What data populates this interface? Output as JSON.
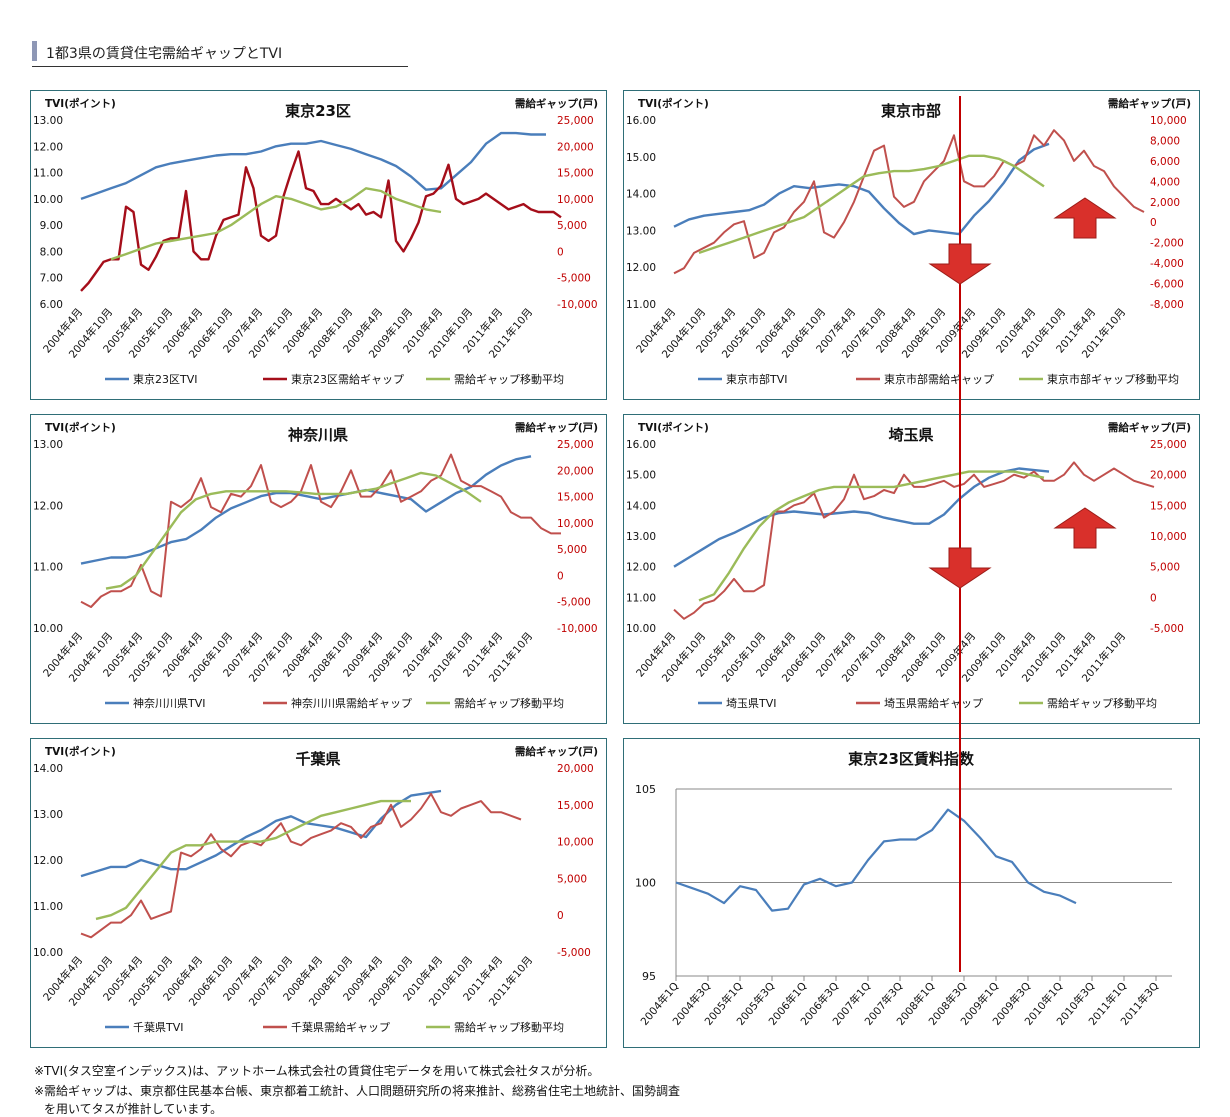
{
  "page": {
    "title": "1都3県の賃貸住宅需給ギャップとTVI",
    "notes": [
      "※TVI(タス空室インデックス)は、アットホーム株式会社の賃貸住宅データを用いて株式会社タスが分析。",
      "※需給ギャップは、東京都住民基本台帳、東京都着工統計、人口問題研究所の将来推計、総務省住宅土地統計、国勢調査",
      "を用いてタスが推計しています。"
    ]
  },
  "colors": {
    "tvi": "#4a7ebb",
    "gap_tokyo23": "#a50e1a",
    "gap": "#c0504d",
    "moving_avg": "#9bbb59",
    "right_axis_text": "#c00000",
    "frame": "#2f6e77",
    "marker_line": "#c00000",
    "arrow": "#d9302b"
  },
  "x_labels_monthly": [
    "2004年4月",
    "2004年10月",
    "2005年4月",
    "2005年10月",
    "2006年4月",
    "2006年10月",
    "2007年4月",
    "2007年10月",
    "2008年4月",
    "2008年10月",
    "2009年4月",
    "2009年10月",
    "2010年4月",
    "2010年10月",
    "2011年4月",
    "2011年10月"
  ],
  "x_labels_quarterly": [
    "2004年1Q",
    "2004年3Q",
    "2005年1Q",
    "2005年3Q",
    "2006年1Q",
    "2006年3Q",
    "2007年1Q",
    "2007年3Q",
    "2008年1Q",
    "2008年3Q",
    "2009年1Q",
    "2009年3Q",
    "2010年1Q",
    "2010年3Q",
    "2011年1Q",
    "2011年3Q"
  ],
  "chart_data": [
    {
      "type": "line",
      "title": "東京23区",
      "left_axis_label": "TVI(ポイント)",
      "right_axis_label": "需給ギャップ(戸)",
      "left_ylim": [
        6.0,
        13.0
      ],
      "left_ticks": [
        "6.00",
        "7.00",
        "8.00",
        "9.00",
        "10.00",
        "11.00",
        "12.00",
        "13.00"
      ],
      "right_ylim": [
        -10000,
        25000
      ],
      "right_ticks": [
        "-10,000",
        "-5,000",
        "0",
        "5,000",
        "10,000",
        "15,000",
        "20,000",
        "25,000"
      ],
      "series": [
        {
          "name": "東京23区TVI",
          "axis": "left",
          "start": 0,
          "values": [
            10.0,
            10.2,
            10.4,
            10.6,
            10.9,
            11.2,
            11.35,
            11.45,
            11.55,
            11.65,
            11.7,
            11.7,
            11.8,
            12.0,
            12.1,
            12.1,
            12.2,
            12.05,
            11.9,
            11.7,
            11.5,
            11.25,
            10.85,
            10.35,
            10.4,
            10.9,
            11.4,
            12.1,
            12.5,
            12.5,
            12.45,
            12.45
          ]
        },
        {
          "name": "東京23区需給ギャップ",
          "axis": "right",
          "start": 0,
          "values": [
            -7500,
            -6000,
            -4000,
            -2000,
            -1500,
            -1500,
            8500,
            7500,
            -2500,
            -3500,
            -1000,
            2000,
            2500,
            2500,
            11500,
            0,
            -1500,
            -1500,
            3000,
            6000,
            6500,
            7000,
            16000,
            12000,
            3000,
            2000,
            3000,
            10500,
            15000,
            19000,
            12000,
            11500,
            9000,
            9000,
            10000,
            9000,
            8000,
            9000,
            7000,
            7500,
            6500,
            13500,
            2000,
            0,
            2500,
            5500,
            10500,
            11000,
            12500,
            16500,
            10000,
            9000,
            9500,
            10000,
            11000,
            10000,
            9000,
            8000,
            8500,
            9000,
            8000,
            7500,
            7500,
            7500,
            6500
          ]
        },
        {
          "name": "需給ギャップ移動平均",
          "axis": "right",
          "start": 6,
          "values": [
            -1500,
            -500,
            500,
            1500,
            2000,
            2500,
            3000,
            3500,
            5000,
            7000,
            9000,
            10500,
            10000,
            9000,
            8000,
            8500,
            10000,
            12000,
            11500,
            10000,
            9000,
            8000,
            7500
          ]
        }
      ]
    },
    {
      "type": "line",
      "title": "東京市部",
      "left_axis_label": "TVI(ポイント)",
      "right_axis_label": "需給ギャップ(戸)",
      "left_ylim": [
        11.0,
        16.0
      ],
      "left_ticks": [
        "11.00",
        "12.00",
        "13.00",
        "14.00",
        "15.00",
        "16.00"
      ],
      "right_ylim": [
        -8000,
        10000
      ],
      "right_ticks": [
        "-8,000",
        "-6,000",
        "-4,000",
        "-2,000",
        "0",
        "2,000",
        "4,000",
        "6,000",
        "8,000",
        "10,000"
      ],
      "series": [
        {
          "name": "東京市部TVI",
          "axis": "left",
          "start": 0,
          "values": [
            13.1,
            13.3,
            13.4,
            13.45,
            13.5,
            13.55,
            13.7,
            14.0,
            14.2,
            14.15,
            14.2,
            14.25,
            14.2,
            14.05,
            13.6,
            13.2,
            12.9,
            13.0,
            12.95,
            12.9,
            13.4,
            13.8,
            14.3,
            14.9,
            15.2,
            15.35
          ]
        },
        {
          "name": "東京市部需給ギャップ",
          "axis": "right",
          "start": 0,
          "values": [
            -5000,
            -4500,
            -3000,
            -2500,
            -2000,
            -1000,
            -200,
            100,
            -3500,
            -3000,
            -1000,
            -500,
            1000,
            2000,
            4000,
            -1000,
            -1500,
            0,
            2000,
            4500,
            7000,
            7500,
            2500,
            1500,
            2000,
            4000,
            5000,
            6000,
            8500,
            4000,
            3500,
            3500,
            4500,
            6000,
            5500,
            6000,
            8500,
            7500,
            9000,
            8000,
            6000,
            7000,
            5500,
            5000,
            3500,
            2500,
            1500,
            1000
          ]
        },
        {
          "name": "東京市部ギャップ移動平均",
          "axis": "right",
          "start": 5,
          "values": [
            -3000,
            -2500,
            -2000,
            -1500,
            -1000,
            -500,
            0,
            500,
            1500,
            2500,
            3500,
            4500,
            4800,
            5000,
            5000,
            5200,
            5500,
            6000,
            6500,
            6500,
            6200,
            5500,
            4500,
            3500
          ]
        }
      ]
    },
    {
      "type": "line",
      "title": "神奈川県",
      "left_axis_label": "TVI(ポイント)",
      "right_axis_label": "需給ギャップ(戸)",
      "left_ylim": [
        10.0,
        13.0
      ],
      "left_ticks": [
        "10.00",
        "11.00",
        "12.00",
        "13.00"
      ],
      "right_ylim": [
        -10000,
        25000
      ],
      "right_ticks": [
        "-10,000",
        "-5,000",
        "0",
        "5,000",
        "10,000",
        "15,000",
        "20,000",
        "25,000"
      ],
      "series": [
        {
          "name": "神奈川川県TVI",
          "axis": "left",
          "start": 0,
          "values": [
            11.05,
            11.1,
            11.15,
            11.15,
            11.2,
            11.3,
            11.4,
            11.45,
            11.6,
            11.8,
            11.95,
            12.05,
            12.15,
            12.2,
            12.2,
            12.15,
            12.1,
            12.15,
            12.2,
            12.25,
            12.2,
            12.15,
            12.1,
            11.9,
            12.05,
            12.2,
            12.3,
            12.5,
            12.65,
            12.75,
            12.8
          ]
        },
        {
          "name": "神奈川川県需給ギャップ",
          "axis": "right",
          "start": 0,
          "values": [
            -5000,
            -6000,
            -4000,
            -3000,
            -3000,
            -2000,
            2000,
            -3000,
            -4000,
            14000,
            13000,
            14500,
            18500,
            13000,
            12000,
            15500,
            15000,
            17000,
            21000,
            14000,
            13000,
            14000,
            16000,
            21000,
            14000,
            13000,
            16000,
            20000,
            15000,
            15000,
            17000,
            20000,
            14000,
            15000,
            16000,
            18000,
            19000,
            23000,
            18000,
            17000,
            17000,
            16000,
            15000,
            12000,
            11000,
            11000,
            9000,
            8000,
            8000
          ]
        },
        {
          "name": "需給ギャップ移動平均",
          "axis": "right",
          "start": 5,
          "values": [
            -2500,
            -2000,
            0,
            4000,
            8000,
            12000,
            14500,
            15500,
            16000,
            16000,
            16000,
            16000,
            16000,
            15800,
            15500,
            15500,
            15500,
            16000,
            16500,
            17500,
            18500,
            19500,
            19000,
            17500,
            16000,
            14000
          ]
        }
      ]
    },
    {
      "type": "line",
      "title": "埼玉県",
      "left_axis_label": "TVI(ポイント)",
      "right_axis_label": "需給ギャップ(戸)",
      "left_ylim": [
        10.0,
        16.0
      ],
      "left_ticks": [
        "10.00",
        "11.00",
        "12.00",
        "13.00",
        "14.00",
        "15.00",
        "16.00"
      ],
      "right_ylim": [
        -5000,
        25000
      ],
      "right_ticks": [
        "-5,000",
        "0",
        "5,000",
        "10,000",
        "15,000",
        "20,000",
        "25,000"
      ],
      "series": [
        {
          "name": "埼玉県TVI",
          "axis": "left",
          "start": 0,
          "values": [
            12.0,
            12.3,
            12.6,
            12.9,
            13.1,
            13.35,
            13.6,
            13.75,
            13.8,
            13.75,
            13.7,
            13.75,
            13.8,
            13.75,
            13.6,
            13.5,
            13.4,
            13.4,
            13.7,
            14.2,
            14.6,
            14.9,
            15.1,
            15.2,
            15.15,
            15.1
          ]
        },
        {
          "name": "埼玉県需給ギャップ",
          "axis": "right",
          "start": 0,
          "values": [
            -2000,
            -3500,
            -2500,
            -1000,
            -500,
            1000,
            3000,
            1000,
            1000,
            2000,
            14000,
            14000,
            15000,
            15500,
            17000,
            13000,
            14000,
            16000,
            20000,
            16000,
            16500,
            17500,
            17000,
            20000,
            18000,
            18000,
            18500,
            19000,
            18000,
            18500,
            20000,
            18000,
            18500,
            19000,
            20000,
            19500,
            20500,
            19000,
            19000,
            20000,
            22000,
            20000,
            19000,
            20000,
            21000,
            20000,
            19000,
            18500,
            18000
          ]
        },
        {
          "name": "需給ギャップ移動平均",
          "axis": "right",
          "start": 5,
          "values": [
            -500,
            500,
            4000,
            8000,
            11500,
            14000,
            15500,
            16500,
            17500,
            18000,
            18000,
            18000,
            18000,
            18000,
            18500,
            19000,
            19500,
            20000,
            20500,
            20500,
            20500,
            20500,
            20000,
            19500
          ]
        }
      ]
    },
    {
      "type": "line",
      "title": "千葉県",
      "left_axis_label": "TVI(ポイント)",
      "right_axis_label": "需給ギャップ(戸)",
      "left_ylim": [
        10.0,
        14.0
      ],
      "left_ticks": [
        "10.00",
        "11.00",
        "12.00",
        "13.00",
        "14.00"
      ],
      "right_ylim": [
        -5000,
        20000
      ],
      "right_ticks": [
        "-5,000",
        "0",
        "5,000",
        "10,000",
        "15,000",
        "20,000"
      ],
      "series": [
        {
          "name": "千葉県TVI",
          "axis": "left",
          "start": 0,
          "values": [
            11.65,
            11.75,
            11.85,
            11.85,
            12.0,
            11.9,
            11.8,
            11.8,
            11.95,
            12.1,
            12.3,
            12.5,
            12.65,
            12.85,
            12.95,
            12.8,
            12.75,
            12.7,
            12.6,
            12.5,
            12.9,
            13.2,
            13.4,
            13.45,
            13.5
          ]
        },
        {
          "name": "千葉県需給ギャップ",
          "axis": "right",
          "start": 0,
          "values": [
            -2500,
            -3000,
            -2000,
            -1000,
            -1000,
            0,
            2000,
            -500,
            0,
            500,
            8500,
            8000,
            9000,
            11000,
            9000,
            8000,
            9500,
            10000,
            9500,
            11000,
            12500,
            10000,
            9500,
            10500,
            11000,
            11500,
            12500,
            12000,
            10500,
            12000,
            12500,
            15000,
            12000,
            13000,
            14500,
            16500,
            14000,
            13500,
            14500,
            15000,
            15500,
            14000,
            14000,
            13500,
            13000
          ]
        },
        {
          "name": "需給ギャップ移動平均",
          "axis": "right",
          "start": 3,
          "values": [
            -500,
            0,
            1000,
            3500,
            6000,
            8500,
            9500,
            9500,
            10000,
            10000,
            10000,
            10000,
            10500,
            11500,
            12500,
            13500,
            14000,
            14500,
            15000,
            15500,
            15500,
            15500
          ]
        }
      ]
    },
    {
      "type": "line",
      "title": "東京23区賃料指数",
      "ylim": [
        95,
        105
      ],
      "y_ticks": [
        "95",
        "100",
        "105"
      ],
      "categories_ref": "x_labels_quarterly",
      "series": [
        {
          "name": "東京23区賃料指数",
          "axis": "left",
          "start": 0,
          "values": [
            100.0,
            99.7,
            99.4,
            98.9,
            99.8,
            99.6,
            98.5,
            98.6,
            99.9,
            100.2,
            99.8,
            100.0,
            101.2,
            102.2,
            102.3,
            102.3,
            102.8,
            103.9,
            103.3,
            102.4,
            101.4,
            101.1,
            100.0,
            99.5,
            99.3,
            98.9
          ]
        }
      ]
    }
  ]
}
